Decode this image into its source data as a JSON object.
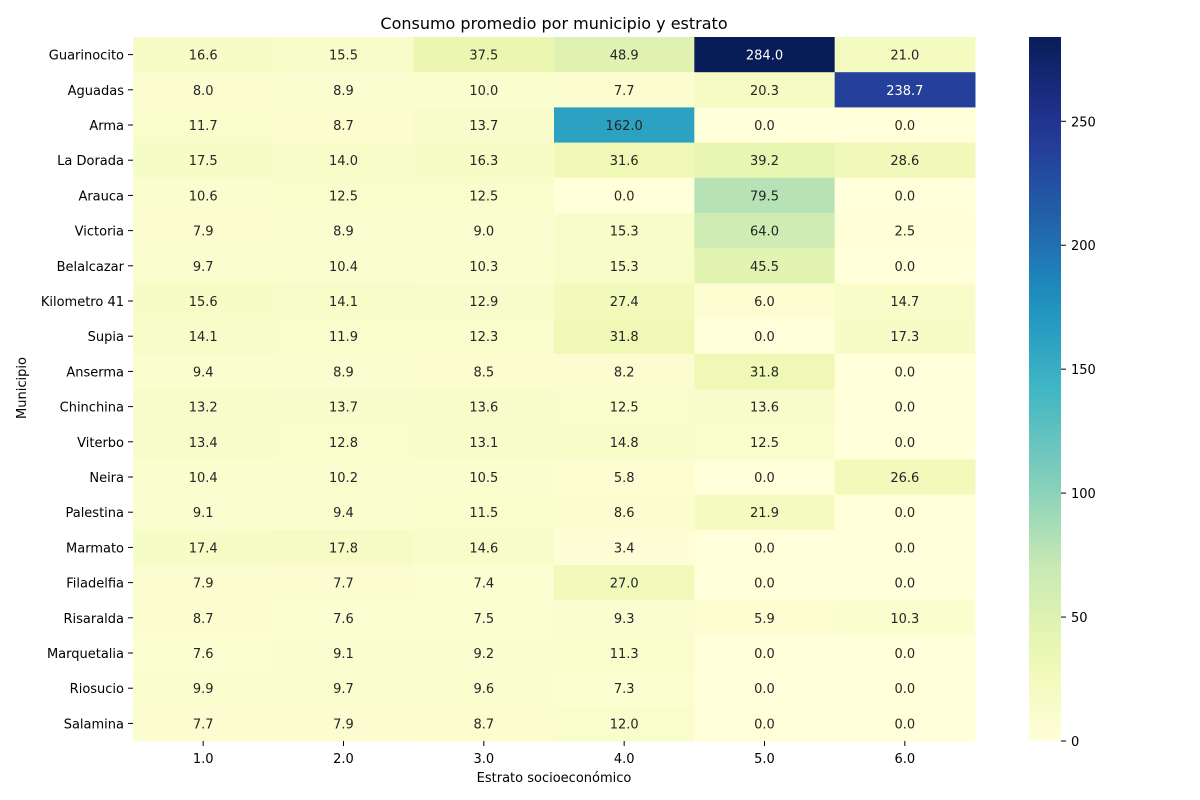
{
  "chart_data": {
    "type": "heatmap",
    "title": "Consumo promedio por municipio y estrato",
    "xlabel": "Estrato socioeconómico",
    "ylabel": "Municipio",
    "x_categories": [
      "1.0",
      "2.0",
      "3.0",
      "4.0",
      "5.0",
      "6.0"
    ],
    "y_categories": [
      "Guarinocito",
      "Aguadas",
      "Arma",
      "La Dorada",
      "Arauca",
      "Victoria",
      "Belalcazar",
      "Kilometro 41",
      "Supia",
      "Anserma",
      "Chinchina",
      "Viterbo",
      "Neira",
      "Palestina",
      "Marmato",
      "Filadelfia",
      "Risaralda",
      "Marquetalia",
      "Riosucio",
      "Salamina"
    ],
    "values": [
      [
        16.6,
        15.5,
        37.5,
        48.9,
        284.0,
        21.0
      ],
      [
        8.0,
        8.9,
        10.0,
        7.7,
        20.3,
        238.7
      ],
      [
        11.7,
        8.7,
        13.7,
        162.0,
        0.0,
        0.0
      ],
      [
        17.5,
        14.0,
        16.3,
        31.6,
        39.2,
        28.6
      ],
      [
        10.6,
        12.5,
        12.5,
        0.0,
        79.5,
        0.0
      ],
      [
        7.9,
        8.9,
        9.0,
        15.3,
        64.0,
        2.5
      ],
      [
        9.7,
        10.4,
        10.3,
        15.3,
        45.5,
        0.0
      ],
      [
        15.6,
        14.1,
        12.9,
        27.4,
        6.0,
        14.7
      ],
      [
        14.1,
        11.9,
        12.3,
        31.8,
        0.0,
        17.3
      ],
      [
        9.4,
        8.9,
        8.5,
        8.2,
        31.8,
        0.0
      ],
      [
        13.2,
        13.7,
        13.6,
        12.5,
        13.6,
        0.0
      ],
      [
        13.4,
        12.8,
        13.1,
        14.8,
        12.5,
        0.0
      ],
      [
        10.4,
        10.2,
        10.5,
        5.8,
        0.0,
        26.6
      ],
      [
        9.1,
        9.4,
        11.5,
        8.6,
        21.9,
        0.0
      ],
      [
        17.4,
        17.8,
        14.6,
        3.4,
        0.0,
        0.0
      ],
      [
        7.9,
        7.7,
        7.4,
        27.0,
        0.0,
        0.0
      ],
      [
        8.7,
        7.6,
        7.5,
        9.3,
        5.9,
        10.3
      ],
      [
        7.6,
        9.1,
        9.2,
        11.3,
        0.0,
        0.0
      ],
      [
        9.9,
        9.7,
        9.6,
        7.3,
        0.0,
        0.0
      ],
      [
        7.7,
        7.9,
        8.7,
        12.0,
        0.0,
        0.0
      ]
    ],
    "value_format": "one decimal",
    "colormap": "YlGnBu",
    "colorbar": {
      "range": [
        0,
        284.0
      ],
      "ticks": [
        0,
        50,
        100,
        150,
        200,
        250
      ],
      "placement": "right"
    }
  }
}
